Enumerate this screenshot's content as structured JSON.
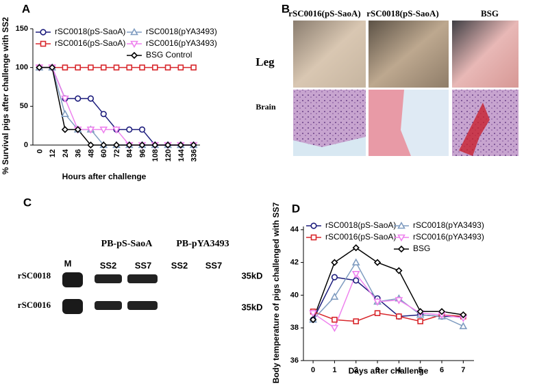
{
  "chart_data": [
    {
      "type": "line",
      "panel": "A",
      "y_label": "% Survival pigs after challenge with SS2",
      "x_label": "Hours after challenge",
      "categories": [
        "0",
        "12",
        "24",
        "36",
        "48",
        "60",
        "72",
        "84",
        "96",
        "108",
        "120",
        "144",
        "336"
      ],
      "ylim": [
        0,
        150
      ],
      "yticks": [
        0,
        50,
        100,
        150
      ],
      "legend": "upper left",
      "grid": false,
      "series": [
        {
          "name": "rSC0018(pS-SaoA)",
          "color": "#1c1c7c",
          "marker": "circle",
          "values": [
            100,
            100,
            60,
            60,
            60,
            40,
            20,
            20,
            20,
            0,
            0,
            0,
            0
          ]
        },
        {
          "name": "rSC0016(pS-SaoA)",
          "color": "#d8262b",
          "marker": "square",
          "values": [
            100,
            100,
            100,
            100,
            100,
            100,
            100,
            100,
            100,
            100,
            100,
            100,
            100
          ]
        },
        {
          "name": "rSC0018(pYA3493)",
          "color": "#7f9cc0",
          "marker": "triangle-up",
          "values": [
            100,
            100,
            40,
            20,
            20,
            0,
            0,
            0,
            0,
            0,
            0,
            0,
            0
          ]
        },
        {
          "name": "rSC0016(pYA3493)",
          "color": "#ee82ee",
          "marker": "triangle-down",
          "values": [
            100,
            100,
            60,
            20,
            20,
            20,
            20,
            0,
            0,
            0,
            0,
            0,
            0
          ]
        },
        {
          "name": "BSG Control",
          "color": "#000000",
          "marker": "diamond",
          "values": [
            100,
            100,
            20,
            20,
            0,
            0,
            0,
            0,
            0,
            0,
            0,
            0,
            0
          ]
        }
      ]
    },
    {
      "type": "line",
      "panel": "D",
      "y_label": "Body temperature of pigs challenged with SS7",
      "x_label": "Days after challenge",
      "x": [
        0,
        1,
        2,
        3,
        4,
        5,
        6,
        7
      ],
      "xlim": [
        -0.45,
        7.5
      ],
      "xticks": [
        0,
        1,
        2,
        3,
        4,
        5,
        6,
        7
      ],
      "ylim": [
        36,
        44.2
      ],
      "yticks": [
        36,
        38,
        40,
        42,
        44
      ],
      "legend": "upper center",
      "grid": false,
      "series": [
        {
          "name": "rSC0018(pS-SaoA)",
          "color": "#1c1c7c",
          "marker": "circle",
          "values": [
            38.5,
            41.1,
            40.9,
            39.8,
            38.7,
            38.8,
            38.7,
            38.7
          ]
        },
        {
          "name": "rSC0016(pS-SaoA)",
          "color": "#d8262b",
          "marker": "square",
          "values": [
            39.0,
            38.5,
            38.4,
            38.9,
            38.7,
            38.4,
            38.8,
            38.7
          ]
        },
        {
          "name": "rSC0018(pYA3493)",
          "color": "#7f9cc0",
          "marker": "triangle-up",
          "values": [
            38.5,
            39.9,
            42.0,
            39.6,
            39.8,
            38.8,
            38.7,
            38.1
          ]
        },
        {
          "name": "rSC0016(pYA3493)",
          "color": "#ee82ee",
          "marker": "triangle-down",
          "values": [
            38.9,
            38.0,
            41.3,
            39.6,
            39.7,
            38.9,
            38.8,
            38.6
          ]
        },
        {
          "name": "BSG",
          "color": "#000000",
          "marker": "diamond",
          "values": [
            38.5,
            42.0,
            42.9,
            42.0,
            41.5,
            39.0,
            39.0,
            38.8
          ]
        }
      ]
    }
  ],
  "panel_b": {
    "panel": "B",
    "columns": [
      "rSC0016(pS-SaoA)",
      "rSC0018(pS-SaoA)",
      "BSG"
    ],
    "rows": [
      "Leg",
      "Brain"
    ]
  },
  "panel_c": {
    "panel": "C",
    "groups": [
      "PB-pS-SaoA",
      "PB-pYA3493"
    ],
    "lanes": [
      "M",
      "SS2",
      "SS7",
      "SS2",
      "SS7"
    ],
    "rows": [
      "rSC0018",
      "rSC0016"
    ],
    "sizes": [
      "35kD",
      "35kD"
    ]
  }
}
